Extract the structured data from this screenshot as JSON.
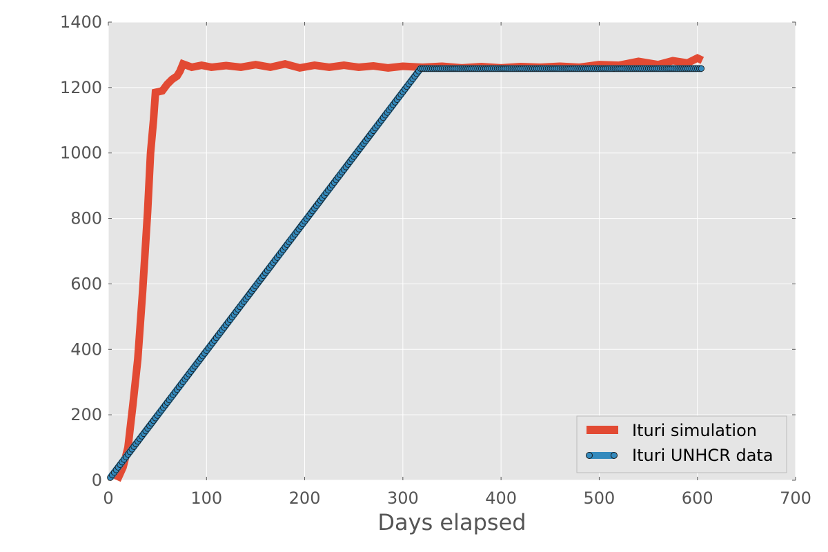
{
  "chart_data": {
    "type": "line",
    "title": "",
    "xlabel": "Days elapsed",
    "ylabel": "",
    "xlim": [
      0,
      700
    ],
    "ylim": [
      0,
      1400
    ],
    "x_ticks": [
      "0",
      "100",
      "200",
      "300",
      "400",
      "500",
      "600",
      "700"
    ],
    "y_ticks": [
      "0",
      "200",
      "400",
      "600",
      "800",
      "1000",
      "1200",
      "1400"
    ],
    "grid": true,
    "legend_position": "lower-right",
    "series": [
      {
        "name": "Ituri simulation",
        "color": "#E24A33",
        "style": "thick-line",
        "points": [
          [
            9,
            0
          ],
          [
            15,
            40
          ],
          [
            20,
            100
          ],
          [
            25,
            230
          ],
          [
            30,
            370
          ],
          [
            35,
            580
          ],
          [
            40,
            820
          ],
          [
            43,
            1000
          ],
          [
            46,
            1100
          ],
          [
            48,
            1185
          ],
          [
            55,
            1190
          ],
          [
            60,
            1210
          ],
          [
            65,
            1225
          ],
          [
            70,
            1235
          ],
          [
            73,
            1250
          ],
          [
            76,
            1272
          ],
          [
            85,
            1262
          ],
          [
            95,
            1268
          ],
          [
            105,
            1262
          ],
          [
            120,
            1267
          ],
          [
            135,
            1262
          ],
          [
            150,
            1270
          ],
          [
            165,
            1262
          ],
          [
            180,
            1272
          ],
          [
            195,
            1260
          ],
          [
            210,
            1268
          ],
          [
            225,
            1262
          ],
          [
            240,
            1268
          ],
          [
            255,
            1262
          ],
          [
            270,
            1266
          ],
          [
            285,
            1260
          ],
          [
            300,
            1265
          ],
          [
            320,
            1262
          ],
          [
            340,
            1265
          ],
          [
            360,
            1260
          ],
          [
            380,
            1264
          ],
          [
            400,
            1260
          ],
          [
            420,
            1264
          ],
          [
            440,
            1262
          ],
          [
            460,
            1265
          ],
          [
            480,
            1262
          ],
          [
            500,
            1270
          ],
          [
            520,
            1268
          ],
          [
            540,
            1280
          ],
          [
            560,
            1270
          ],
          [
            575,
            1282
          ],
          [
            590,
            1275
          ],
          [
            600,
            1290
          ],
          [
            605,
            1283
          ]
        ]
      },
      {
        "name": "Ituri UNHCR data",
        "color": "#348ABD",
        "style": "line-with-markers",
        "points": [
          [
            2,
            8
          ],
          [
            318,
            1258
          ],
          [
            605,
            1258
          ]
        ]
      }
    ]
  }
}
